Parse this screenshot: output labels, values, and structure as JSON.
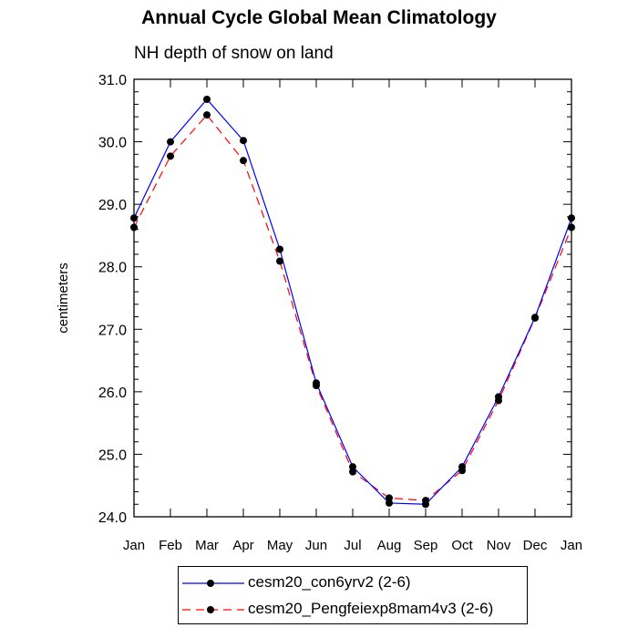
{
  "chart_data": {
    "type": "line",
    "title": "Annual Cycle Global Mean Climatology",
    "subtitle": "NH depth of snow on land",
    "xlabel": "",
    "ylabel": "centimeters",
    "categories": [
      "Jan",
      "Feb",
      "Mar",
      "Apr",
      "May",
      "Jun",
      "Jul",
      "Aug",
      "Sep",
      "Oct",
      "Nov",
      "Dec",
      "Jan"
    ],
    "ylim": [
      24.0,
      31.0
    ],
    "yticks": [
      "24.0",
      "25.0",
      "26.0",
      "27.0",
      "28.0",
      "29.0",
      "30.0",
      "31.0"
    ],
    "grid": false,
    "legend_position": "bottom",
    "series": [
      {
        "name": "cesm20_con6yrv2 (2-6)",
        "color": "#0000ff",
        "dash": "solid",
        "values": [
          28.78,
          30.0,
          30.68,
          30.02,
          28.28,
          26.14,
          24.8,
          24.22,
          24.2,
          24.8,
          25.92,
          27.19,
          28.78
        ]
      },
      {
        "name": "cesm20_Pengfeiexp8mam4v3 (2-6)",
        "color": "#ff0000",
        "dash": "dashed",
        "values": [
          28.63,
          29.77,
          30.43,
          29.7,
          28.09,
          26.1,
          24.72,
          24.3,
          24.26,
          24.74,
          25.86,
          27.18,
          28.63
        ]
      }
    ]
  }
}
